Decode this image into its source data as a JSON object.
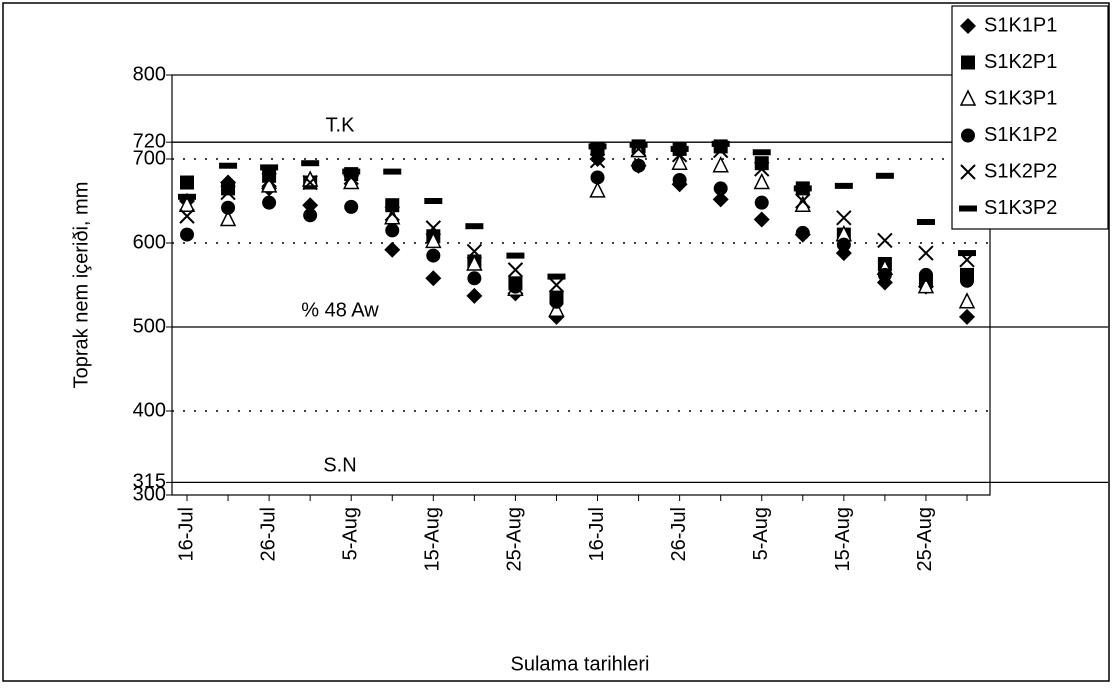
{
  "chart_data": {
    "type": "scatter",
    "x_label": "Sulama tarihleri",
    "y_label": "Toprak nem içeriði, mm",
    "categories": [
      "16-Jul",
      null,
      "26-Jul",
      null,
      "5-Aug",
      null,
      "15-Aug",
      null,
      "25-Aug",
      null,
      "16-Jul",
      null,
      "26-Jul",
      null,
      "5-Aug",
      null,
      "15-Aug",
      null,
      "25-Aug",
      null
    ],
    "ylim": [
      300,
      800
    ],
    "yticks": [
      300,
      315,
      400,
      500,
      600,
      700,
      720,
      800
    ],
    "grid": true,
    "legend": "top-right",
    "reference_lines": [
      {
        "value": 720,
        "label": "T.K"
      },
      {
        "value": 500,
        "label": "% 48 Aw"
      },
      {
        "value": 315,
        "label": "S.N"
      }
    ],
    "series": [
      {
        "name": "S1K1P1",
        "color": "#000000",
        "marker": "diamond",
        "values": [
          650,
          672,
          665,
          645,
          680,
          592,
          558,
          537,
          540,
          512,
          700,
          692,
          670,
          652,
          628,
          610,
          588,
          553,
          548,
          512
        ]
      },
      {
        "name": "S1K2P1",
        "color": "#000000",
        "marker": "square",
        "values": [
          672,
          665,
          680,
          672,
          682,
          645,
          608,
          578,
          552,
          535,
          712,
          715,
          712,
          715,
          695,
          665,
          610,
          575,
          555,
          562
        ]
      },
      {
        "name": "S1K3P1",
        "color": "#000000",
        "marker": "triangle",
        "values": [
          645,
          628,
          668,
          675,
          672,
          630,
          602,
          575,
          545,
          520,
          662,
          710,
          695,
          692,
          672,
          645,
          610,
          570,
          548,
          530
        ]
      },
      {
        "name": "S1K1P2",
        "color": "#000000",
        "marker": "circle",
        "values": [
          610,
          642,
          648,
          633,
          643,
          615,
          585,
          558,
          548,
          530,
          678,
          692,
          675,
          665,
          648,
          612,
          598,
          562,
          562,
          555
        ]
      },
      {
        "name": "S1K2P2",
        "color": "#000000",
        "marker": "x",
        "values": [
          632,
          660,
          675,
          672,
          678,
          635,
          618,
          590,
          568,
          550,
          698,
          712,
          705,
          710,
          688,
          650,
          630,
          603,
          588,
          580
        ]
      },
      {
        "name": "S1K3P2",
        "color": "#000000",
        "marker": "dash",
        "values": [
          655,
          692,
          690,
          695,
          685,
          685,
          650,
          620,
          585,
          560,
          715,
          717,
          712,
          718,
          708,
          665,
          668,
          680,
          625,
          588
        ]
      }
    ]
  }
}
